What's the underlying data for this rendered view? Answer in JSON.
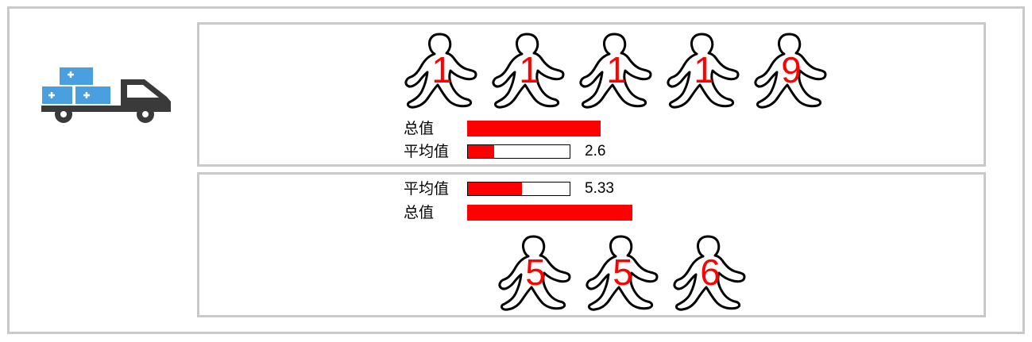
{
  "top": {
    "people": [
      "1",
      "1",
      "1",
      "1",
      "9"
    ],
    "total_label": "总值",
    "total_fraction": 1.0,
    "average_label": "平均值",
    "average_value": "2.6",
    "average_fraction": 0.26
  },
  "bottom": {
    "average_label": "平均值",
    "average_value": "5.33",
    "average_fraction": 0.53,
    "total_label": "总值",
    "total_fraction": 1.0,
    "people": [
      "5",
      "5",
      "6"
    ]
  },
  "colors": {
    "accent": "#ff0000",
    "border": "#c9c9c9",
    "box_blue": "#4a9fe0",
    "truck_dark": "#3a3a3a"
  },
  "icons": {
    "truck": "delivery-truck-icon",
    "person": "walking-person-icon"
  }
}
